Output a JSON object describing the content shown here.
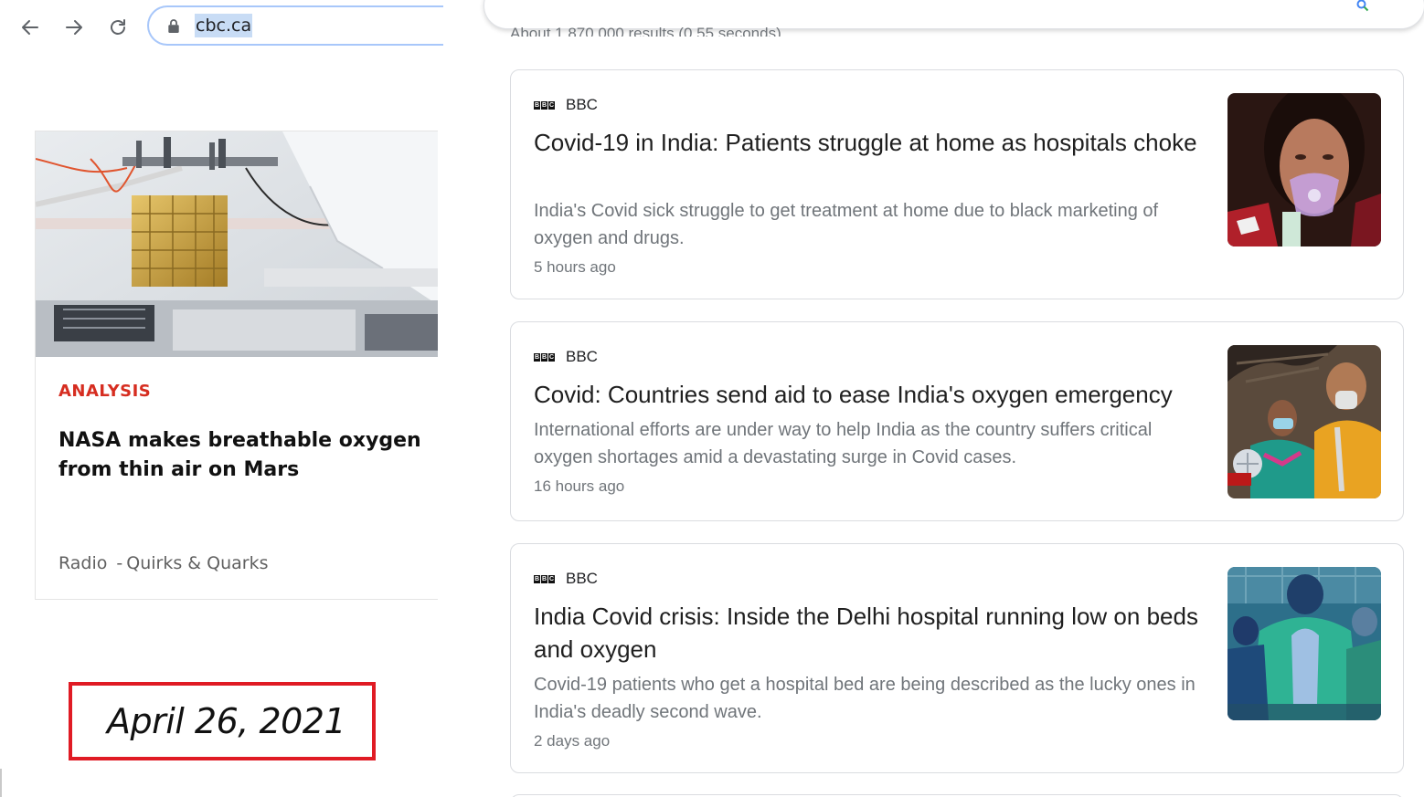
{
  "browser": {
    "url": "cbc.ca"
  },
  "article": {
    "tag": "ANALYSIS",
    "headline": "NASA makes breathable oxygen from thin air on Mars",
    "section": "Radio",
    "separator": "-",
    "program": "Quirks & Quarks"
  },
  "date_stamp": "April 26, 2021",
  "search": {
    "stats": "About 1,870,000 results (0.55 seconds)"
  },
  "results": [
    {
      "source": "BBC",
      "title": "Covid-19 in India: Patients struggle at home as hospitals choke",
      "snippet": "India's Covid sick struggle to get treatment at home due to black marketing of oxygen and drugs.",
      "time": "5 hours ago"
    },
    {
      "source": "BBC",
      "title": "Covid: Countries send aid to ease India's oxygen emergency",
      "snippet": "International efforts are under way to help India as the country suffers critical oxygen shortages amid a devastating surge in Covid cases.",
      "time": "16 hours ago"
    },
    {
      "source": "BBC",
      "title": "India Covid crisis: Inside the Delhi hospital running low on beds and oxygen",
      "snippet": "Covid-19 patients who get a hospital bed are being described as the lucky ones in India's deadly second wave.",
      "time": "2 days ago"
    }
  ],
  "colors": {
    "accent_red": "#d62d20",
    "date_box_border": "#e01b24",
    "address_bar_border": "#a8c7fa",
    "url_highlight": "#c8dcf5",
    "snippet_gray": "#70757a"
  },
  "icons": {
    "back": "arrow-left-icon",
    "forward": "arrow-right-icon",
    "reload": "reload-icon",
    "lock": "lock-icon",
    "bbc": "bbc-logo-icon"
  }
}
